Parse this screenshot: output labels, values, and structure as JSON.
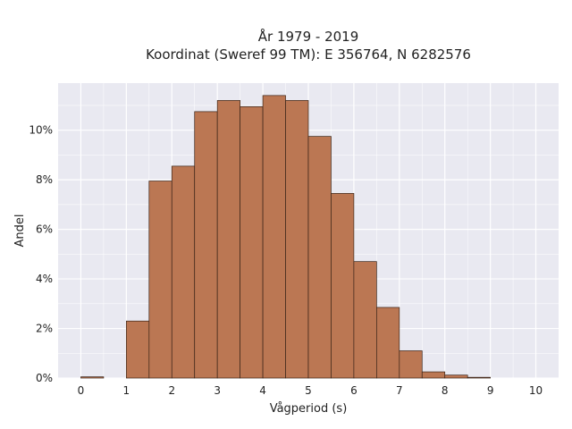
{
  "chart_data": {
    "type": "bar",
    "title_line1": "År 1979 - 2019",
    "title_line2": "Koordinat (Sweref 99 TM): E 356764, N 6282576",
    "xlabel": "Vågperiod (s)",
    "ylabel": "Andel",
    "xlim": [
      -0.5,
      10.5
    ],
    "ylim": [
      0,
      11.9
    ],
    "x_ticks": [
      0,
      1,
      2,
      3,
      4,
      5,
      6,
      7,
      8,
      9,
      10
    ],
    "y_ticks": [
      0,
      2,
      4,
      6,
      8,
      10
    ],
    "y_tick_suffix": "%",
    "grid": true,
    "bins": [
      {
        "start": 0.0,
        "end": 0.5,
        "value": 0.05
      },
      {
        "start": 0.5,
        "end": 1.0,
        "value": 0.0
      },
      {
        "start": 1.0,
        "end": 1.5,
        "value": 2.3
      },
      {
        "start": 1.5,
        "end": 2.0,
        "value": 7.95
      },
      {
        "start": 2.0,
        "end": 2.5,
        "value": 8.55
      },
      {
        "start": 2.5,
        "end": 3.0,
        "value": 10.75
      },
      {
        "start": 3.0,
        "end": 3.5,
        "value": 11.2
      },
      {
        "start": 3.5,
        "end": 4.0,
        "value": 10.95
      },
      {
        "start": 4.0,
        "end": 4.5,
        "value": 11.4
      },
      {
        "start": 4.5,
        "end": 5.0,
        "value": 11.2
      },
      {
        "start": 5.0,
        "end": 5.5,
        "value": 9.75
      },
      {
        "start": 5.5,
        "end": 6.0,
        "value": 7.45
      },
      {
        "start": 6.0,
        "end": 6.5,
        "value": 4.7
      },
      {
        "start": 6.5,
        "end": 7.0,
        "value": 2.85
      },
      {
        "start": 7.0,
        "end": 7.5,
        "value": 1.1
      },
      {
        "start": 7.5,
        "end": 8.0,
        "value": 0.25
      },
      {
        "start": 8.0,
        "end": 8.5,
        "value": 0.12
      },
      {
        "start": 8.5,
        "end": 9.0,
        "value": 0.03
      }
    ],
    "bar_color": "#bb7753",
    "bar_edge_color": "#3a2418",
    "plot_bg": "#e9e9f1",
    "grid_color": "#ffffff"
  }
}
